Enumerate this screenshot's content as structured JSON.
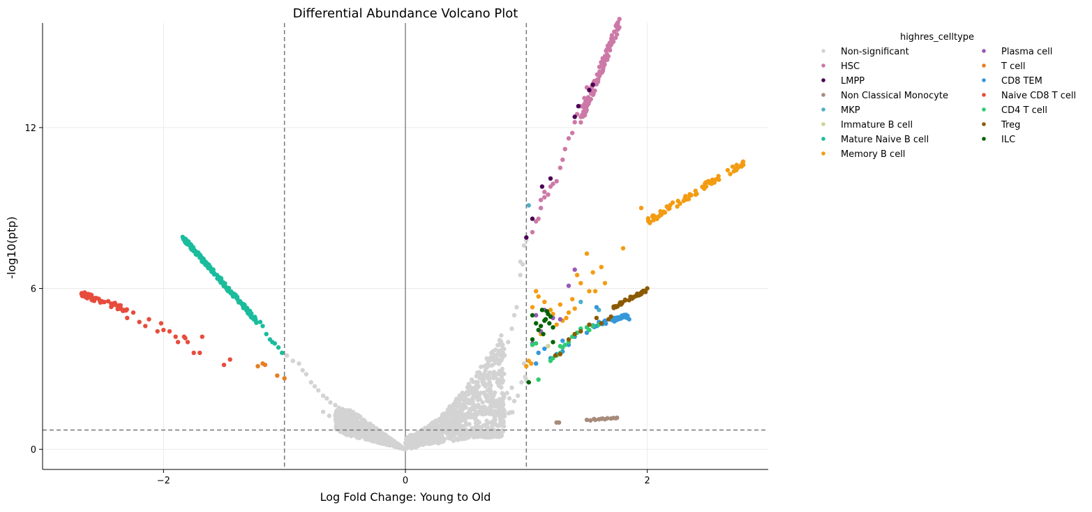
{
  "chart_data": {
    "type": "scatter",
    "title": "Differential Abundance Volcano Plot",
    "xlabel": "Log Fold Change: Young to Old",
    "ylabel": "-log10(ptp)",
    "xlim": [
      -3.0,
      3.0
    ],
    "ylim": [
      -0.75,
      15.9
    ],
    "xticks": [
      -2,
      0,
      2
    ],
    "xtick_labels": [
      "−2",
      "0",
      "2"
    ],
    "yticks": [
      0,
      6,
      12
    ],
    "ytick_labels": [
      "0",
      "6",
      "12"
    ],
    "grid": true,
    "reference_lines": {
      "vertical_dashed": [
        -1,
        1
      ],
      "vertical_solid": [
        0
      ],
      "horizontal_dashed": [
        0.72
      ]
    },
    "legend": {
      "title": "highres_celltype",
      "placement": "outside-right",
      "columns": 2
    },
    "series": [
      {
        "name": "Non-significant",
        "color": "#d3d3d3",
        "generated": "nonsig",
        "points": [
          [
            -0.98,
            3.5
          ],
          [
            -0.93,
            3.3
          ],
          [
            -0.88,
            3.2
          ],
          [
            -0.85,
            2.95
          ],
          [
            -0.82,
            2.8
          ],
          [
            -0.78,
            2.5
          ],
          [
            -0.75,
            2.35
          ],
          [
            -0.72,
            2.2
          ],
          [
            -0.68,
            2.0
          ],
          [
            -0.65,
            1.9
          ],
          [
            -0.62,
            1.75
          ],
          [
            -0.58,
            1.65
          ],
          [
            -0.55,
            1.55
          ],
          [
            -0.52,
            1.5
          ],
          [
            -0.68,
            1.4
          ],
          [
            -0.63,
            1.25
          ],
          [
            0.74,
            1.6
          ],
          [
            0.72,
            1.9
          ],
          [
            0.76,
            2.5
          ],
          [
            0.78,
            2.8
          ],
          [
            0.8,
            3.0
          ],
          [
            0.82,
            3.5
          ],
          [
            0.85,
            4.0
          ],
          [
            0.88,
            4.5
          ],
          [
            0.9,
            5.0
          ],
          [
            0.92,
            5.3
          ],
          [
            0.95,
            6.5
          ],
          [
            0.97,
            6.9
          ],
          [
            0.95,
            7.0
          ],
          [
            0.98,
            7.6
          ],
          [
            1.0,
            7.8
          ],
          [
            0.99,
            2.7
          ],
          [
            0.98,
            3.2
          ],
          [
            0.96,
            2.5
          ],
          [
            1.0,
            2.6
          ],
          [
            0.88,
            2.3
          ],
          [
            0.86,
            1.9
          ],
          [
            0.84,
            2.1
          ],
          [
            0.81,
            1.5
          ],
          [
            0.78,
            1.3
          ],
          [
            0.7,
            1.8
          ],
          [
            0.68,
            2.2
          ],
          [
            0.75,
            1.7
          ],
          [
            0.9,
            1.8
          ],
          [
            0.93,
            2.0
          ],
          [
            0.6,
            0.5
          ],
          [
            0.62,
            0.55
          ],
          [
            0.64,
            0.5
          ],
          [
            0.66,
            0.45
          ],
          [
            0.5,
            0.6
          ],
          [
            0.55,
            0.62
          ],
          [
            0.45,
            0.7
          ]
        ]
      },
      {
        "name": "HSC",
        "color": "#cc79a7",
        "generated": "hsc",
        "points": [
          [
            1.05,
            8.1
          ],
          [
            1.08,
            8.5
          ],
          [
            1.1,
            8.6
          ],
          [
            1.12,
            9.0
          ],
          [
            1.12,
            9.3
          ],
          [
            1.15,
            9.4
          ],
          [
            1.15,
            9.6
          ],
          [
            1.18,
            9.5
          ],
          [
            1.2,
            9.8
          ],
          [
            1.22,
            9.9
          ],
          [
            1.25,
            10.0
          ],
          [
            1.28,
            10.5
          ],
          [
            1.3,
            10.8
          ],
          [
            1.32,
            11.2
          ],
          [
            1.35,
            11.6
          ],
          [
            1.38,
            11.8
          ],
          [
            1.4,
            12.2
          ],
          [
            1.42,
            12.5
          ],
          [
            1.45,
            12.8
          ],
          [
            1.48,
            13.1
          ],
          [
            1.5,
            13.5
          ]
        ]
      },
      {
        "name": "LMPP",
        "color": "#4b0055",
        "points": [
          [
            1.0,
            7.9
          ],
          [
            1.05,
            8.6
          ],
          [
            1.13,
            9.8
          ],
          [
            1.2,
            10.1
          ],
          [
            1.4,
            12.4
          ],
          [
            1.43,
            12.8
          ],
          [
            1.52,
            13.4
          ],
          [
            1.55,
            13.6
          ]
        ]
      },
      {
        "name": "Non Classical Monocyte",
        "color": "#a88b7b",
        "points": [
          [
            1.25,
            1.0
          ],
          [
            1.27,
            1.0
          ],
          [
            1.5,
            1.1
          ],
          [
            1.53,
            1.08
          ],
          [
            1.56,
            1.13
          ],
          [
            1.6,
            1.12
          ],
          [
            1.63,
            1.15
          ],
          [
            1.65,
            1.12
          ],
          [
            1.67,
            1.16
          ],
          [
            1.7,
            1.15
          ],
          [
            1.72,
            1.17
          ],
          [
            1.74,
            1.16
          ],
          [
            1.75,
            1.18
          ],
          [
            1.57,
            1.1
          ],
          [
            1.62,
            1.14
          ]
        ]
      },
      {
        "name": "MKP",
        "color": "#4eaec8",
        "points": [
          [
            1.02,
            9.1
          ],
          [
            1.45,
            5.5
          ],
          [
            1.6,
            5.2
          ]
        ]
      },
      {
        "name": "Immature B cell",
        "color": "#cfd493",
        "points": [
          [
            1.05,
            3.9
          ],
          [
            1.12,
            4.3
          ],
          [
            1.1,
            3.6
          ],
          [
            1.18,
            3.85
          ]
        ]
      },
      {
        "name": "Mature Naive B cell",
        "color": "#1abc9c",
        "generated": "mnb",
        "points": [
          [
            -1.02,
            3.6
          ],
          [
            -1.05,
            3.8
          ],
          [
            -1.08,
            3.95
          ],
          [
            -1.1,
            4.0
          ],
          [
            -1.12,
            4.1
          ],
          [
            -1.15,
            4.3
          ],
          [
            -1.18,
            4.6
          ],
          [
            -1.2,
            4.75
          ]
        ]
      },
      {
        "name": "Memory B cell",
        "color": "#f39c12",
        "generated": "memb",
        "points": [
          [
            1.0,
            3.1
          ],
          [
            1.02,
            3.3
          ],
          [
            1.05,
            5.3
          ],
          [
            1.1,
            5.7
          ],
          [
            1.2,
            5.2
          ],
          [
            1.3,
            4.8
          ],
          [
            1.35,
            5.1
          ],
          [
            1.4,
            5.25
          ],
          [
            1.42,
            6.5
          ],
          [
            1.45,
            6.2
          ],
          [
            1.5,
            7.3
          ],
          [
            1.52,
            5.9
          ],
          [
            1.57,
            5.9
          ],
          [
            1.62,
            6.8
          ],
          [
            1.65,
            6.2
          ],
          [
            1.8,
            7.5
          ],
          [
            1.95,
            9.0
          ],
          [
            1.28,
            5.4
          ],
          [
            1.22,
            5.05
          ],
          [
            1.15,
            5.5
          ],
          [
            1.08,
            5.9
          ],
          [
            1.12,
            4.3
          ],
          [
            1.04,
            3.2
          ],
          [
            1.25,
            4.65
          ],
          [
            1.33,
            4.9
          ],
          [
            1.38,
            5.6
          ],
          [
            1.55,
            6.6
          ]
        ]
      },
      {
        "name": "Plasma cell",
        "color": "#9b59b6",
        "points": [
          [
            1.35,
            6.1
          ],
          [
            1.4,
            6.7
          ],
          [
            1.08,
            5.0
          ],
          [
            1.15,
            5.2
          ],
          [
            1.22,
            4.9
          ],
          [
            1.28,
            4.85
          ],
          [
            1.12,
            4.4
          ],
          [
            1.05,
            3.95
          ]
        ]
      },
      {
        "name": "T cell",
        "color": "#e67e22",
        "points": [
          [
            -1.18,
            3.2
          ],
          [
            -1.16,
            3.15
          ],
          [
            -1.06,
            2.75
          ],
          [
            -1.0,
            2.65
          ],
          [
            -1.22,
            3.1
          ]
        ]
      },
      {
        "name": "CD8 TEM",
        "color": "#3498db",
        "generated": "cd8",
        "points": [
          [
            1.1,
            3.6
          ],
          [
            1.15,
            3.75
          ],
          [
            1.08,
            3.2
          ],
          [
            1.2,
            3.4
          ],
          [
            1.25,
            3.55
          ],
          [
            1.3,
            3.65
          ],
          [
            1.35,
            3.9
          ],
          [
            1.3,
            4.05
          ],
          [
            1.4,
            4.2
          ],
          [
            1.45,
            4.5
          ],
          [
            1.5,
            4.35
          ],
          [
            1.55,
            4.6
          ],
          [
            1.6,
            4.75
          ],
          [
            1.65,
            4.8
          ],
          [
            1.7,
            4.85
          ],
          [
            1.75,
            4.9
          ],
          [
            1.8,
            4.95
          ],
          [
            1.85,
            4.85
          ],
          [
            1.58,
            5.3
          ]
        ]
      },
      {
        "name": "Naive CD8 T cell",
        "color": "#e74c3c",
        "generated": "ncd8",
        "points": [
          [
            -2.2,
            4.75
          ],
          [
            -2.15,
            4.6
          ],
          [
            -2.12,
            4.85
          ],
          [
            -2.05,
            4.4
          ],
          [
            -2.0,
            4.45
          ],
          [
            -2.02,
            4.7
          ],
          [
            -1.95,
            4.4
          ],
          [
            -1.9,
            4.2
          ],
          [
            -1.88,
            4.0
          ],
          [
            -1.83,
            4.2
          ],
          [
            -1.82,
            4.15
          ],
          [
            -1.8,
            4.0
          ],
          [
            -1.75,
            3.6
          ],
          [
            -1.7,
            3.6
          ],
          [
            -1.68,
            4.2
          ],
          [
            -1.5,
            3.15
          ],
          [
            -1.45,
            3.35
          ],
          [
            -2.25,
            5.1
          ],
          [
            -2.3,
            4.9
          ]
        ]
      },
      {
        "name": "CD4 T cell",
        "color": "#2ecc71",
        "points": [
          [
            1.05,
            3.9
          ],
          [
            1.08,
            3.95
          ],
          [
            1.1,
            2.6
          ],
          [
            1.2,
            3.3
          ],
          [
            1.22,
            3.4
          ],
          [
            1.25,
            3.5
          ],
          [
            1.28,
            3.6
          ],
          [
            1.3,
            3.8
          ],
          [
            1.32,
            3.9
          ],
          [
            1.35,
            4.0
          ],
          [
            1.38,
            4.2
          ],
          [
            1.42,
            4.35
          ],
          [
            1.45,
            4.5
          ],
          [
            1.5,
            4.55
          ],
          [
            1.55,
            4.6
          ],
          [
            1.6,
            4.65
          ],
          [
            1.52,
            4.45
          ],
          [
            1.28,
            3.85
          ]
        ]
      },
      {
        "name": "Treg",
        "color": "#8b5a00",
        "generated": "treg",
        "points": [
          [
            1.24,
            3.5
          ],
          [
            1.28,
            3.55
          ],
          [
            1.35,
            4.1
          ],
          [
            1.4,
            4.3
          ],
          [
            1.45,
            4.4
          ],
          [
            1.52,
            4.65
          ],
          [
            1.58,
            4.9
          ],
          [
            1.62,
            4.7
          ],
          [
            1.68,
            4.85
          ],
          [
            1.7,
            4.95
          ]
        ]
      },
      {
        "name": "ILC",
        "color": "#006400",
        "points": [
          [
            1.02,
            2.5
          ],
          [
            1.05,
            5.0
          ],
          [
            1.08,
            4.7
          ],
          [
            1.1,
            4.45
          ],
          [
            1.12,
            4.6
          ],
          [
            1.15,
            4.8
          ],
          [
            1.17,
            5.15
          ],
          [
            1.18,
            5.05
          ],
          [
            1.2,
            4.95
          ],
          [
            1.14,
            4.3
          ],
          [
            1.22,
            4.55
          ],
          [
            1.16,
            4.85
          ],
          [
            1.19,
            4.7
          ],
          [
            1.05,
            4.1
          ],
          [
            1.13,
            5.2
          ],
          [
            1.22,
            4.0
          ]
        ]
      }
    ]
  }
}
